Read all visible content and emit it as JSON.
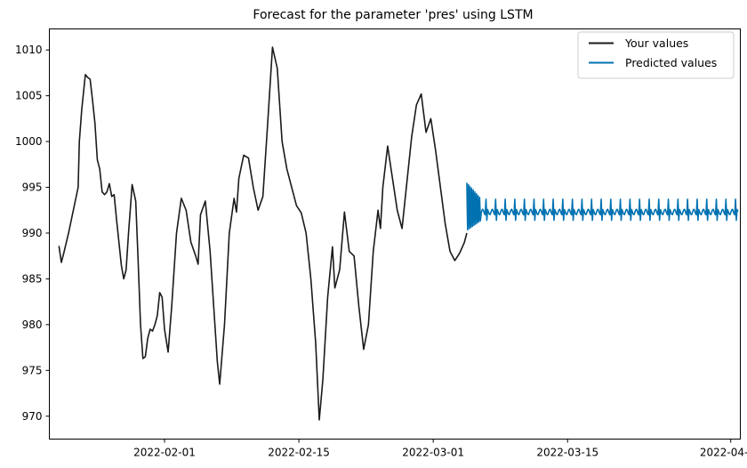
{
  "chart_data": {
    "type": "line",
    "title": "Forecast for the parameter 'pres' using LSTM",
    "xlabel": "",
    "ylabel": "",
    "x_range": [
      "2022-01-20",
      "2022-04-02"
    ],
    "ylim": [
      967.5,
      1012.3
    ],
    "grid": false,
    "legend_position": "top-right",
    "x_ticks": [
      "2022-02-01",
      "2022-02-15",
      "2022-03-01",
      "2022-03-15",
      "2022-04-01"
    ],
    "y_ticks": [
      970,
      975,
      980,
      985,
      990,
      995,
      1000,
      1005,
      1010
    ],
    "series": [
      {
        "name": "Your values",
        "color": "#1a1a1a",
        "points": [
          [
            "2022-01-21T00:00",
            988.6
          ],
          [
            "2022-01-21T06:00",
            986.8
          ],
          [
            "2022-01-21T12:00",
            987.8
          ],
          [
            "2022-01-22T00:00",
            990.0
          ],
          [
            "2022-01-22T12:00",
            992.5
          ],
          [
            "2022-01-23T00:00",
            995.0
          ],
          [
            "2022-01-23T03:00",
            1000.0
          ],
          [
            "2022-01-23T09:00",
            1003.5
          ],
          [
            "2022-01-23T18:00",
            1007.3
          ],
          [
            "2022-01-24T00:00",
            1007.0
          ],
          [
            "2022-01-24T06:00",
            1006.8
          ],
          [
            "2022-01-24T12:00",
            1004.5
          ],
          [
            "2022-01-24T18:00",
            1002.0
          ],
          [
            "2022-01-25T00:00",
            998.0
          ],
          [
            "2022-01-25T06:00",
            997.0
          ],
          [
            "2022-01-25T12:00",
            994.5
          ],
          [
            "2022-01-25T18:00",
            994.2
          ],
          [
            "2022-01-26T00:00",
            994.5
          ],
          [
            "2022-01-26T06:00",
            995.4
          ],
          [
            "2022-01-26T12:00",
            994.0
          ],
          [
            "2022-01-26T18:00",
            994.2
          ],
          [
            "2022-01-27T00:00",
            991.5
          ],
          [
            "2022-01-27T06:00",
            989.0
          ],
          [
            "2022-01-27T12:00",
            986.5
          ],
          [
            "2022-01-27T18:00",
            985.0
          ],
          [
            "2022-01-28T00:00",
            986.0
          ],
          [
            "2022-01-28T06:00",
            990.0
          ],
          [
            "2022-01-28T15:00",
            995.3
          ],
          [
            "2022-01-29T00:00",
            993.5
          ],
          [
            "2022-01-29T06:00",
            987.0
          ],
          [
            "2022-01-29T12:00",
            980.0
          ],
          [
            "2022-01-29T18:00",
            976.3
          ],
          [
            "2022-01-30T00:00",
            976.5
          ],
          [
            "2022-01-30T06:00",
            978.5
          ],
          [
            "2022-01-30T12:00",
            979.5
          ],
          [
            "2022-01-30T18:00",
            979.3
          ],
          [
            "2022-01-31T00:00",
            980.0
          ],
          [
            "2022-01-31T06:00",
            981.0
          ],
          [
            "2022-01-31T12:00",
            983.5
          ],
          [
            "2022-01-31T18:00",
            983.0
          ],
          [
            "2022-02-01T00:00",
            979.5
          ],
          [
            "2022-02-01T09:00",
            977.0
          ],
          [
            "2022-02-01T18:00",
            982.0
          ],
          [
            "2022-02-02T06:00",
            990.0
          ],
          [
            "2022-02-02T18:00",
            993.8
          ],
          [
            "2022-02-03T06:00",
            992.5
          ],
          [
            "2022-02-03T18:00",
            989.0
          ],
          [
            "2022-02-04T06:00",
            987.5
          ],
          [
            "2022-02-04T12:00",
            986.6
          ],
          [
            "2022-02-04T18:00",
            992.0
          ],
          [
            "2022-02-05T06:00",
            993.5
          ],
          [
            "2022-02-05T18:00",
            988.0
          ],
          [
            "2022-02-06T06:00",
            980.0
          ],
          [
            "2022-02-06T12:00",
            976.0
          ],
          [
            "2022-02-06T18:00",
            973.5
          ],
          [
            "2022-02-07T06:00",
            980.0
          ],
          [
            "2022-02-07T18:00",
            990.0
          ],
          [
            "2022-02-08T06:00",
            993.8
          ],
          [
            "2022-02-08T12:00",
            992.3
          ],
          [
            "2022-02-08T18:00",
            996.0
          ],
          [
            "2022-02-09T06:00",
            998.5
          ],
          [
            "2022-02-09T18:00",
            998.2
          ],
          [
            "2022-02-10T06:00",
            995.0
          ],
          [
            "2022-02-10T18:00",
            992.5
          ],
          [
            "2022-02-11T06:00",
            994.0
          ],
          [
            "2022-02-11T18:00",
            1002.0
          ],
          [
            "2022-02-12T06:00",
            1010.3
          ],
          [
            "2022-02-12T18:00",
            1008.0
          ],
          [
            "2022-02-13T06:00",
            1000.0
          ],
          [
            "2022-02-13T18:00",
            997.0
          ],
          [
            "2022-02-14T06:00",
            995.0
          ],
          [
            "2022-02-14T18:00",
            993.0
          ],
          [
            "2022-02-15T06:00",
            992.2
          ],
          [
            "2022-02-15T18:00",
            990.0
          ],
          [
            "2022-02-16T06:00",
            985.0
          ],
          [
            "2022-02-16T18:00",
            978.0
          ],
          [
            "2022-02-17T03:00",
            969.6
          ],
          [
            "2022-02-17T12:00",
            974.0
          ],
          [
            "2022-02-18T00:00",
            983.0
          ],
          [
            "2022-02-18T12:00",
            988.5
          ],
          [
            "2022-02-18T18:00",
            984.0
          ],
          [
            "2022-02-19T06:00",
            986.0
          ],
          [
            "2022-02-19T18:00",
            992.3
          ],
          [
            "2022-02-20T06:00",
            988.0
          ],
          [
            "2022-02-20T18:00",
            987.5
          ],
          [
            "2022-02-21T06:00",
            982.0
          ],
          [
            "2022-02-21T18:00",
            977.3
          ],
          [
            "2022-02-22T06:00",
            980.0
          ],
          [
            "2022-02-22T18:00",
            988.0
          ],
          [
            "2022-02-23T06:00",
            992.5
          ],
          [
            "2022-02-23T12:00",
            990.5
          ],
          [
            "2022-02-23T18:00",
            995.0
          ],
          [
            "2022-02-24T06:00",
            999.5
          ],
          [
            "2022-02-24T18:00",
            996.0
          ],
          [
            "2022-02-25T06:00",
            992.5
          ],
          [
            "2022-02-25T18:00",
            990.5
          ],
          [
            "2022-02-26T06:00",
            995.5
          ],
          [
            "2022-02-26T18:00",
            1000.5
          ],
          [
            "2022-02-27T06:00",
            1004.0
          ],
          [
            "2022-02-27T18:00",
            1005.2
          ],
          [
            "2022-02-28T06:00",
            1001.0
          ],
          [
            "2022-02-28T18:00",
            1002.5
          ],
          [
            "2022-03-01T06:00",
            999.0
          ],
          [
            "2022-03-01T18:00",
            995.0
          ],
          [
            "2022-03-02T06:00",
            991.0
          ],
          [
            "2022-03-02T18:00",
            988.0
          ],
          [
            "2022-03-03T06:00",
            987.0
          ],
          [
            "2022-03-03T18:00",
            987.8
          ],
          [
            "2022-03-04T06:00",
            989.0
          ],
          [
            "2022-03-04T12:00",
            990.0
          ]
        ]
      },
      {
        "name": "Predicted values",
        "color": "#0072b2",
        "start": "2022-03-04T12:00",
        "end": "2022-04-01T18:00",
        "level": 992.5,
        "oscillation_period_days": 1,
        "oscillation_range": [
          991.4,
          993.7
        ],
        "initial_spike_range": [
          990.3,
          995.5
        ]
      }
    ]
  }
}
